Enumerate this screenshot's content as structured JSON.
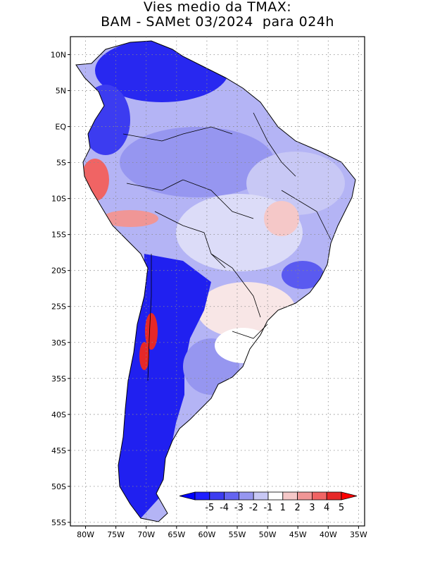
{
  "title": {
    "line1": "Vies medio da TMAX:",
    "line2": "BAM - SAMet 03/2024  para 024h"
  },
  "axes": {
    "lat_labels": [
      "10N",
      "5N",
      "EQ",
      "5S",
      "10S",
      "15S",
      "20S",
      "25S",
      "30S",
      "35S",
      "40S",
      "45S",
      "50S",
      "55S"
    ],
    "lat_values": [
      10,
      5,
      0,
      -5,
      -10,
      -15,
      -20,
      -25,
      -30,
      -35,
      -40,
      -45,
      -50,
      -55
    ],
    "lon_labels": [
      "80W",
      "75W",
      "70W",
      "65W",
      "60W",
      "55W",
      "50W",
      "45W",
      "40W",
      "35W"
    ],
    "lon_values": [
      -80,
      -75,
      -70,
      -65,
      -60,
      -55,
      -50,
      -45,
      -40,
      -35
    ],
    "lon_range": [
      -82.5,
      -34
    ],
    "lat_range": [
      -55.5,
      12.5
    ],
    "grid": true
  },
  "colorbar": {
    "labels": [
      "-5",
      "-4",
      "-3",
      "-2",
      "-1",
      "1",
      "2",
      "3",
      "4",
      "5"
    ],
    "colors": [
      "#1e1eff",
      "#3c3cf0",
      "#6464f0",
      "#9696f0",
      "#c8c8f5",
      "#ffffff",
      "#f5c8c8",
      "#f09696",
      "#f06464",
      "#e62828"
    ],
    "under_color": "#0000ff",
    "over_color": "#ff0000"
  },
  "regions": {
    "deep_negative": "#2828f0",
    "moderate_negative": "#7878f0",
    "light_negative": "#b4b4f5",
    "neutral": "#ffffff",
    "light_positive": "#f5c8c8",
    "strong_positive": "#e62828"
  }
}
